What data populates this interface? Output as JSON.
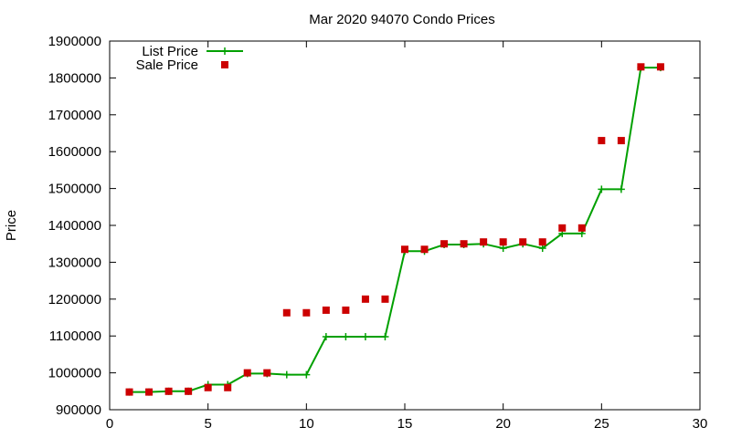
{
  "chart_data": {
    "type": "line",
    "title": "Mar 2020 94070 Condo Prices",
    "xlabel": "",
    "ylabel": "Price",
    "xlim": [
      0,
      30
    ],
    "ylim": [
      900000,
      1900000
    ],
    "xticks": [
      0,
      5,
      10,
      15,
      20,
      25,
      30
    ],
    "yticks": [
      900000,
      1000000,
      1100000,
      1200000,
      1300000,
      1400000,
      1500000,
      1600000,
      1700000,
      1800000,
      1900000
    ],
    "grid": false,
    "legend_position": "top-left",
    "series": [
      {
        "name": "List Price",
        "style": "line-with-plus",
        "color": "#00a000",
        "x": [
          1,
          2,
          3,
          4,
          5,
          6,
          7,
          8,
          9,
          10,
          11,
          12,
          13,
          14,
          15,
          16,
          17,
          18,
          19,
          20,
          21,
          22,
          23,
          24,
          25,
          26,
          27,
          28
        ],
        "y": [
          948000,
          948000,
          950000,
          950000,
          968000,
          968000,
          998000,
          998000,
          995000,
          995000,
          1098000,
          1098000,
          1098000,
          1098000,
          1330000,
          1330000,
          1348000,
          1348000,
          1350000,
          1338000,
          1350000,
          1338000,
          1378000,
          1378000,
          1498000,
          1498000,
          1828000,
          1828000
        ]
      },
      {
        "name": "Sale Price",
        "style": "square-points",
        "color": "#cc0000",
        "x": [
          1,
          2,
          3,
          4,
          5,
          6,
          7,
          8,
          9,
          10,
          11,
          12,
          13,
          14,
          15,
          16,
          17,
          18,
          19,
          20,
          21,
          22,
          23,
          24,
          25,
          26,
          27,
          28
        ],
        "y": [
          948000,
          948000,
          950000,
          950000,
          960000,
          960000,
          1000000,
          1000000,
          1163000,
          1163000,
          1170000,
          1170000,
          1200000,
          1200000,
          1335000,
          1335000,
          1350000,
          1350000,
          1355000,
          1355000,
          1355000,
          1355000,
          1393000,
          1393000,
          1630000,
          1630000,
          1830000,
          1830000
        ]
      }
    ]
  }
}
